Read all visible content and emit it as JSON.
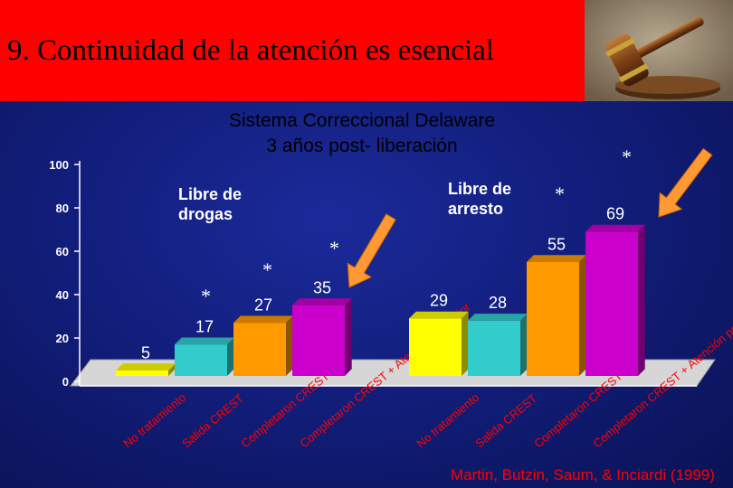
{
  "slide": {
    "title": "9.   Continuidad de la atención es esencial",
    "source": "Martin, Butzin, Saum, & Inciardi (1999)"
  },
  "chart_data": {
    "type": "bar",
    "title": "Sistema Correccional Delaware",
    "subtitle": "3 años post- liberación",
    "xlabel": "",
    "ylabel": "",
    "ylim": [
      0,
      100
    ],
    "yticks": [
      0,
      20,
      40,
      60,
      80,
      100
    ],
    "grid": false,
    "groups": [
      {
        "label_lines": [
          "Libre de",
          "drogas"
        ],
        "categories": [
          "No tratamiento",
          "Salida CREST",
          "Completaron CREST",
          "Completaron CREST + Atención posterior"
        ],
        "values": [
          5,
          17,
          27,
          35
        ],
        "colors": [
          "#ffff00",
          "#33cccc",
          "#ff9900",
          "#cc00cc"
        ]
      },
      {
        "label_lines": [
          "Libre de",
          "arresto"
        ],
        "categories": [
          "No tratamiento",
          "Salida CREST",
          "Completaron CREST",
          "Completaron CREST + Atención posterior"
        ],
        "values": [
          29,
          28,
          55,
          69
        ],
        "colors": [
          "#ffff00",
          "#33cccc",
          "#ff9900",
          "#cc00cc"
        ]
      }
    ],
    "significance_marks": [
      "*",
      "*",
      "*",
      "*",
      "*",
      "*"
    ]
  }
}
